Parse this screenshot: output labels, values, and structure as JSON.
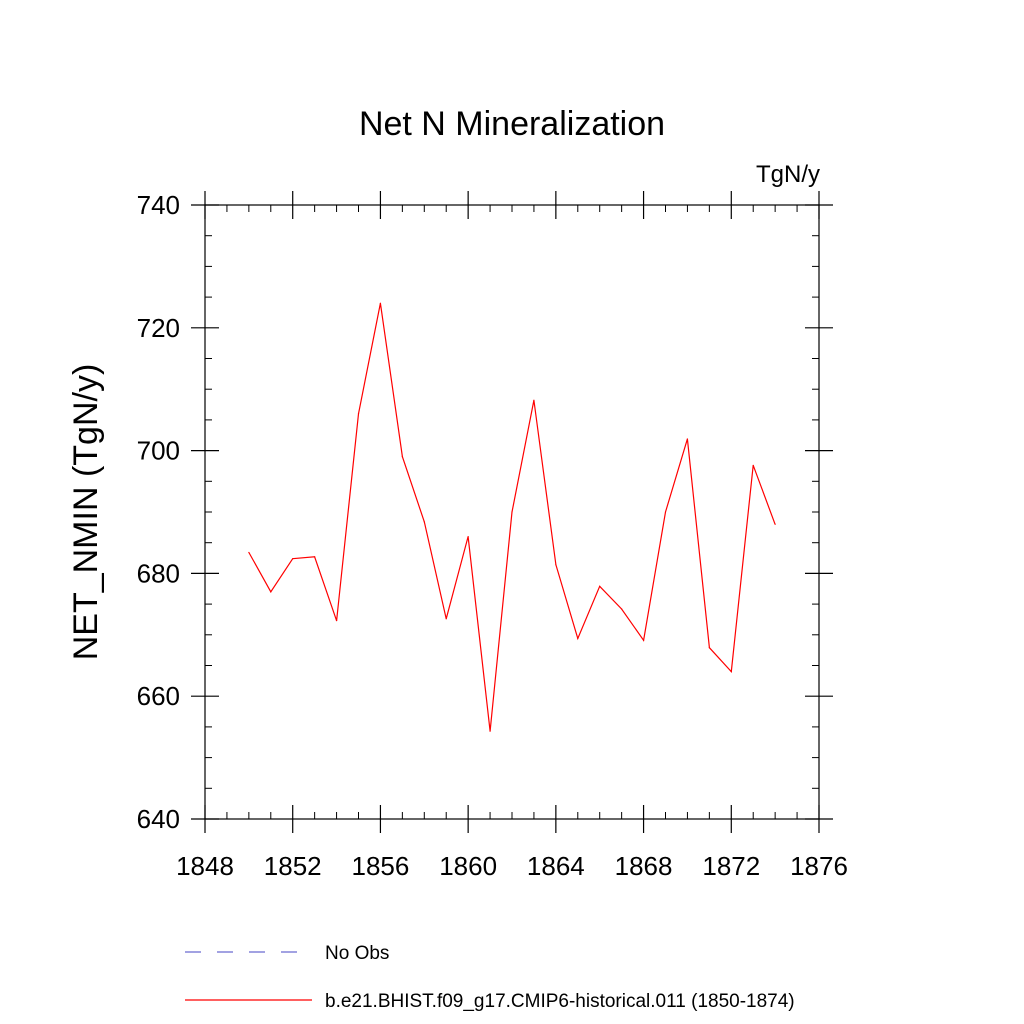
{
  "chart_data": {
    "type": "line",
    "title": "Net N Mineralization",
    "units": "TgN/y",
    "xlabel": "",
    "ylabel": "NET_NMIN  (TgN/y)",
    "xlim": [
      1848,
      1876
    ],
    "ylim": [
      640,
      740
    ],
    "x_major_ticks": [
      1848,
      1852,
      1856,
      1860,
      1864,
      1868,
      1872,
      1876
    ],
    "x_minor_step": 1,
    "y_major_ticks": [
      640,
      660,
      680,
      700,
      720,
      740
    ],
    "y_minor_step": 5,
    "grid": false,
    "legend_position": "bottom",
    "series": [
      {
        "name": "b.e21.BHIST.f09_g17.CMIP6-historical.011 (1850-1874)",
        "color": "#ff0000",
        "style": "solid",
        "x": [
          1850,
          1851,
          1852,
          1853,
          1854,
          1855,
          1856,
          1857,
          1858,
          1859,
          1860,
          1861,
          1862,
          1863,
          1864,
          1865,
          1866,
          1867,
          1868,
          1869,
          1870,
          1871,
          1872,
          1873,
          1874
        ],
        "y": [
          683.4,
          677.0,
          682.4,
          682.7,
          672.3,
          706.0,
          724.0,
          699.0,
          688.4,
          672.6,
          686.0,
          654.3,
          690.0,
          708.2,
          681.4,
          669.4,
          677.9,
          674.2,
          669.1,
          690.0,
          701.9,
          667.9,
          664.0,
          697.6,
          688.0
        ]
      }
    ],
    "legend": [
      {
        "label": "No Obs",
        "color": "#6a6ad0",
        "style": "dashed"
      },
      {
        "label": "b.e21.BHIST.f09_g17.CMIP6-historical.011 (1850-1874)",
        "color": "#ff0000",
        "style": "solid"
      }
    ]
  }
}
